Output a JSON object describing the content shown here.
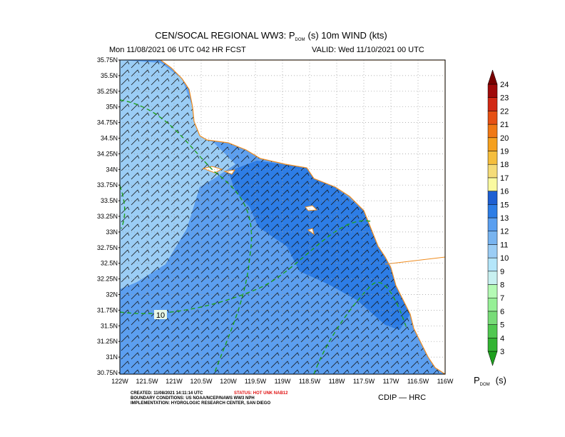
{
  "header": {
    "title": {
      "text": "CEN/SOCAL REGIONAL WW3: P",
      "subscript": "DOM",
      "suffix": "(s) 10m WIND (kts)"
    },
    "forecast": "Mon 11/08/2021 06 UTC 042 HR FCST",
    "valid": "VALID: Wed 11/10/2021 00 UTC"
  },
  "map": {
    "lat_labels": [
      "35.75N",
      "35.5N",
      "35.25N",
      "35N",
      "34.75N",
      "34.5N",
      "34.25N",
      "34N",
      "33.75N",
      "33.5N",
      "33.25N",
      "33N",
      "32.75N",
      "32.5N",
      "32.25N",
      "32N",
      "31.75N",
      "31.5N",
      "31.25N",
      "31N",
      "30.75N"
    ],
    "lon_labels": [
      "122W",
      "121.5W",
      "121W",
      "120.5W",
      "120W",
      "119.5W",
      "119W",
      "118.5W",
      "118W",
      "117.5W",
      "117W",
      "116.5W",
      "116W"
    ],
    "contour_label": "10"
  },
  "colorbar": {
    "labels": [
      "3",
      "4",
      "5",
      "6",
      "7",
      "8",
      "9",
      "10",
      "11",
      "12",
      "13",
      "15",
      "16",
      "17",
      "18",
      "19",
      "20",
      "21",
      "22",
      "23",
      "24"
    ],
    "colors": [
      "#1ea01e",
      "#32b432",
      "#50c850",
      "#78dc78",
      "#96f096",
      "#b4fab4",
      "#c8f0f0",
      "#b4e6fa",
      "#9bcdf5",
      "#78b4f0",
      "#5a9ff0",
      "#2d7de6",
      "#1e5fd2",
      "#fafaa0",
      "#f5dc78",
      "#f5be3c",
      "#f5a01e",
      "#f07814",
      "#e65014",
      "#d22814",
      "#a00a0a",
      "#780000"
    ],
    "title": "P",
    "title_sub": "DOM",
    "unit": "(s)"
  },
  "footer": {
    "created": "CREATED: 11/08/2021 14:11:14 UTC",
    "status": "STATUS: HOT UNK NAB12",
    "boundary": "BOUNDARY CONDITIONS: US NOAA/NCEP/NAWS WW3 NPH",
    "implementation": "IMPLEMENTATION: HYDROLOGIC RESEARCH CENTER, SAN DIEGO",
    "credit": "CDIP — HRC"
  }
}
